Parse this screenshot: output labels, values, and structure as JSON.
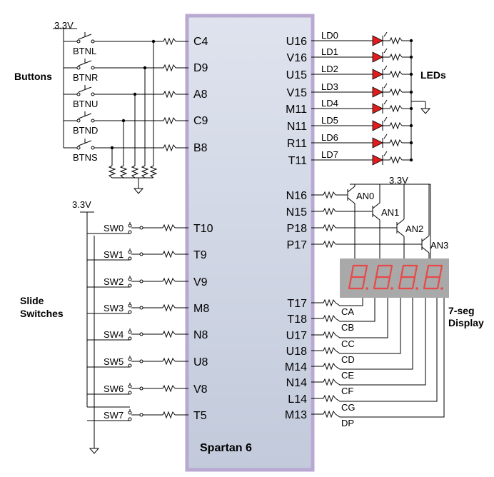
{
  "fpga": {
    "name": "Spartan 6"
  },
  "supply": {
    "top": "3.3V",
    "switches": "3.3V",
    "anodes": "3.3V"
  },
  "groups": {
    "buttons": "Buttons",
    "leds": "LEDs",
    "slide_switches_line1": "Slide",
    "slide_switches_line2": "Switches",
    "seg_line1": "7-seg",
    "seg_line2": "Display"
  },
  "buttons": [
    {
      "name": "BTNL",
      "pin": "C4"
    },
    {
      "name": "BTNR",
      "pin": "D9"
    },
    {
      "name": "BTNU",
      "pin": "A8"
    },
    {
      "name": "BTND",
      "pin": "C9"
    },
    {
      "name": "BTNS",
      "pin": "B8"
    }
  ],
  "switches": [
    {
      "name": "SW0",
      "pin": "T10"
    },
    {
      "name": "SW1",
      "pin": "T9"
    },
    {
      "name": "SW2",
      "pin": "V9"
    },
    {
      "name": "SW3",
      "pin": "M8"
    },
    {
      "name": "SW4",
      "pin": "N8"
    },
    {
      "name": "SW5",
      "pin": "U8"
    },
    {
      "name": "SW6",
      "pin": "V8"
    },
    {
      "name": "SW7",
      "pin": "T5"
    }
  ],
  "leds": [
    {
      "name": "LD0",
      "pin": "U16"
    },
    {
      "name": "LD1",
      "pin": "V16"
    },
    {
      "name": "LD2",
      "pin": "U15"
    },
    {
      "name": "LD3",
      "pin": "V15"
    },
    {
      "name": "LD4",
      "pin": "M11"
    },
    {
      "name": "LD5",
      "pin": "N11"
    },
    {
      "name": "LD6",
      "pin": "R11"
    },
    {
      "name": "LD7",
      "pin": "T11"
    }
  ],
  "anodes": [
    {
      "name": "AN0",
      "pin": "N16"
    },
    {
      "name": "AN1",
      "pin": "N15"
    },
    {
      "name": "AN2",
      "pin": "P18"
    },
    {
      "name": "AN3",
      "pin": "P17"
    }
  ],
  "segments": [
    {
      "name": "CA",
      "pin": "T17"
    },
    {
      "name": "CB",
      "pin": "T18"
    },
    {
      "name": "CC",
      "pin": "U17"
    },
    {
      "name": "CD",
      "pin": "U18"
    },
    {
      "name": "CE",
      "pin": "M14"
    },
    {
      "name": "CF",
      "pin": "N14"
    },
    {
      "name": "CG",
      "pin": "L14"
    },
    {
      "name": "DP",
      "pin": "M13"
    }
  ],
  "colors": {
    "chip_fill": "#d3d9e6",
    "chip_border": "#b9a9d2",
    "led_red": "#e01c1c",
    "display_bg": "#a9a9a9",
    "segment_red": "#e84848"
  }
}
